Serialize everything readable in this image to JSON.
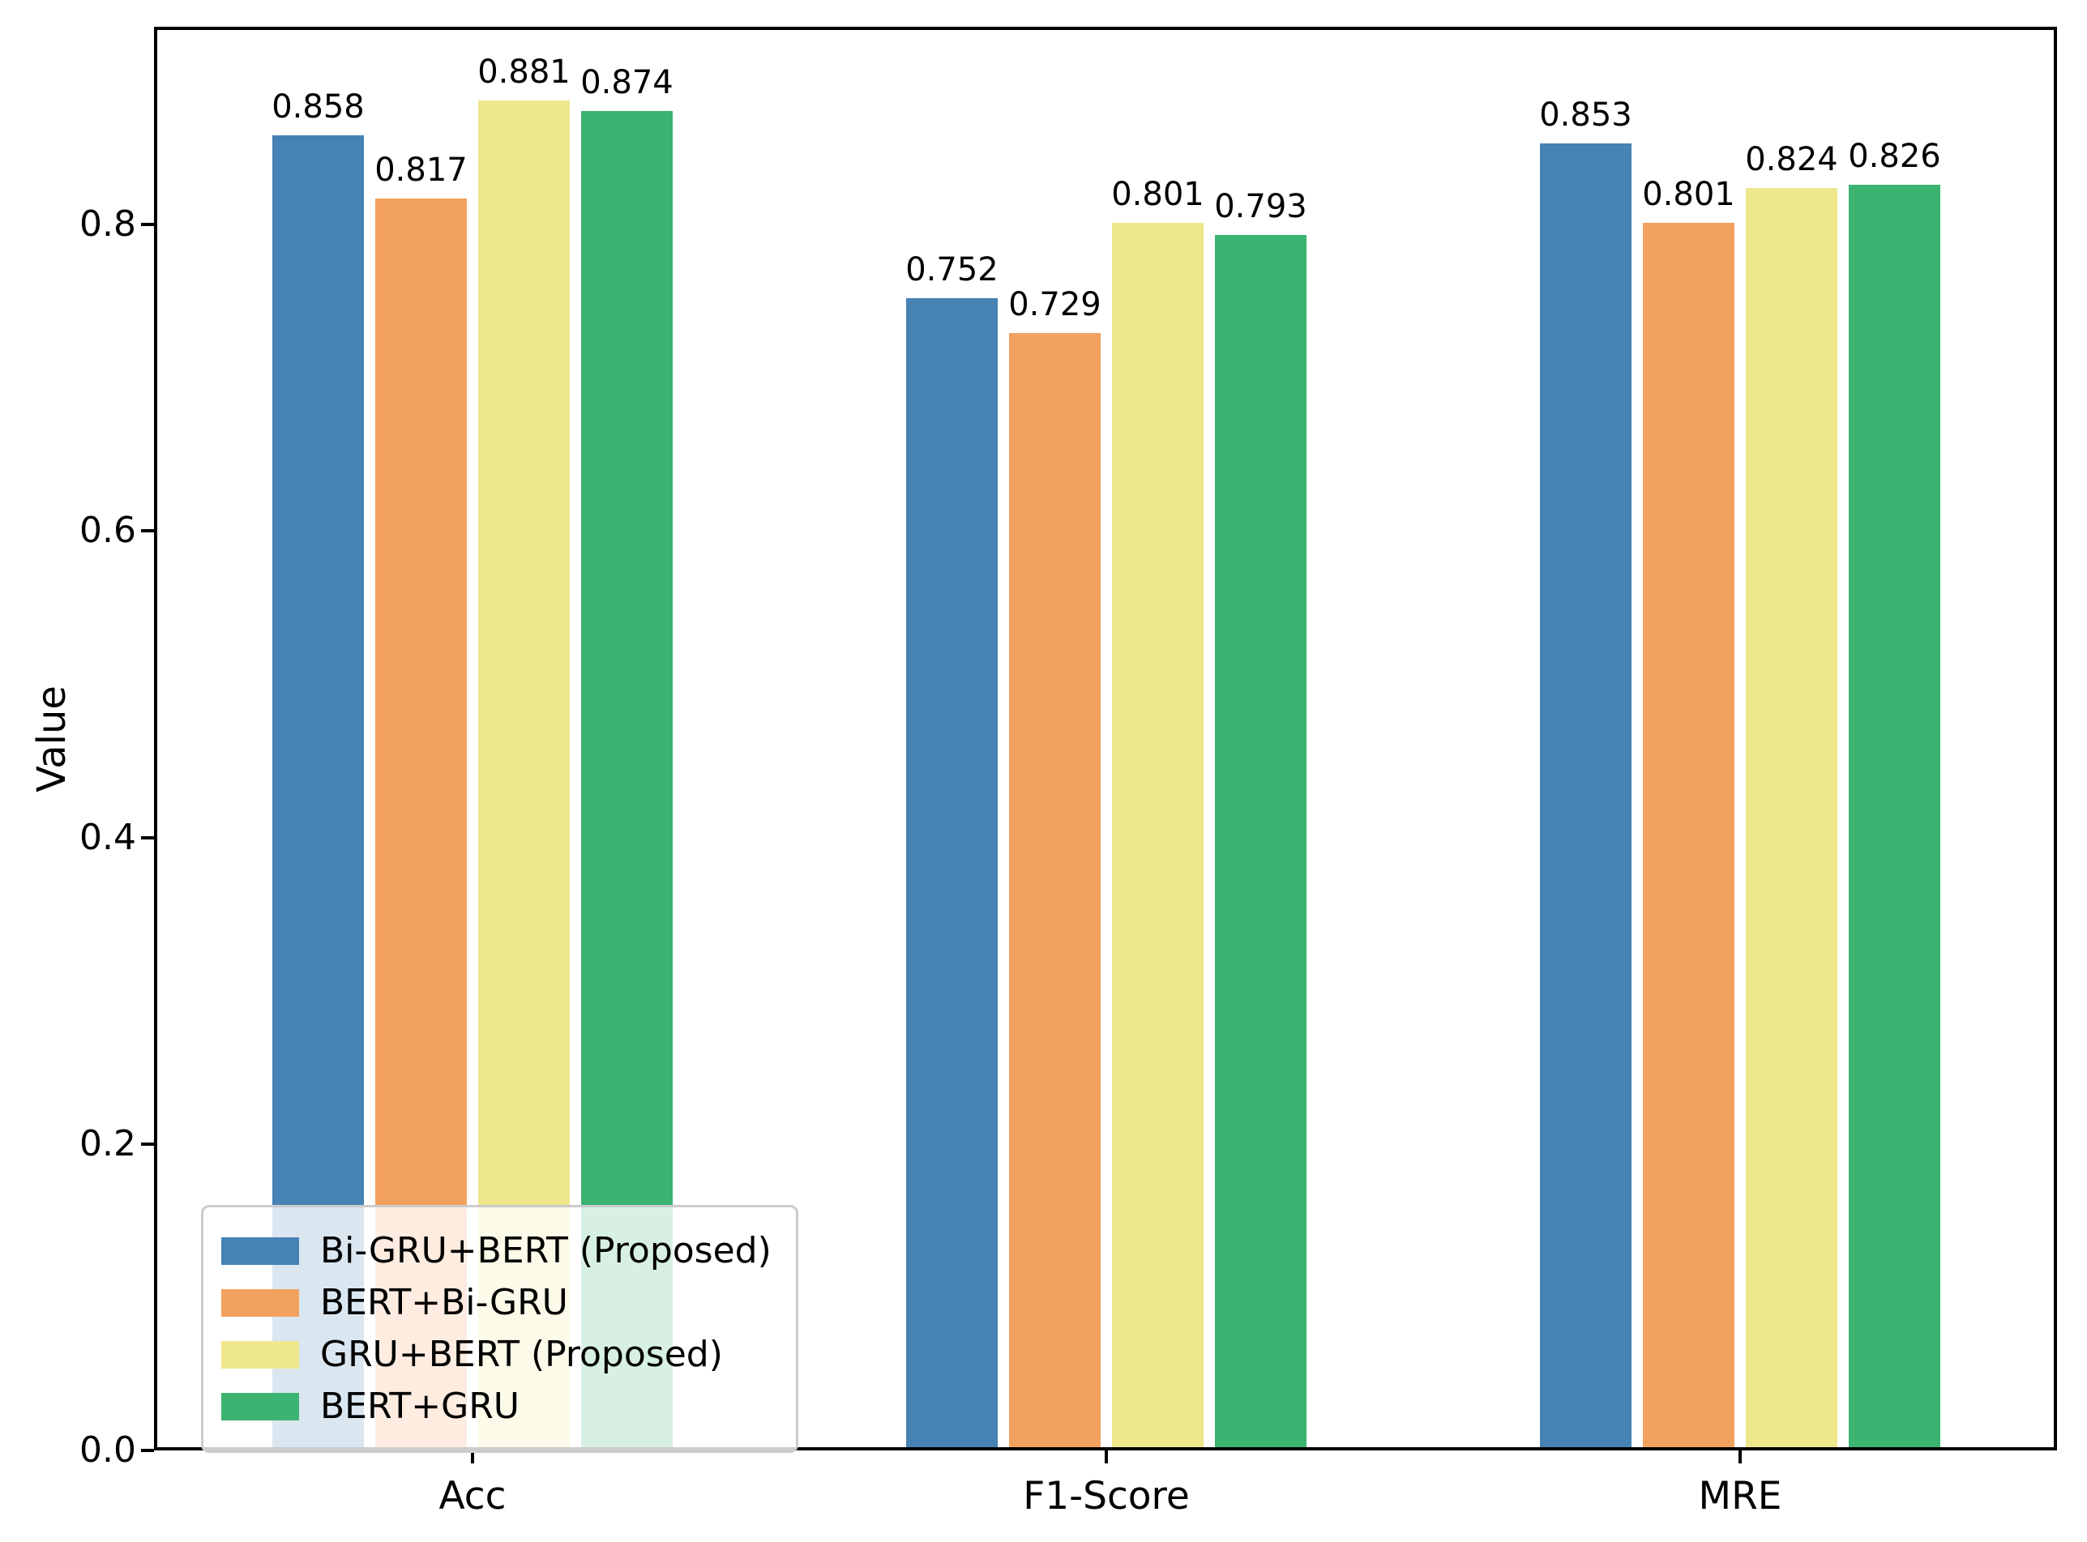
{
  "figure": {
    "background": "#ffffff",
    "spine_color": "#000000",
    "text_color": "#000000",
    "legend_border_color": "#cccccc"
  },
  "chart_data": {
    "type": "bar",
    "title": "",
    "xlabel": "",
    "ylabel": "Value",
    "categories": [
      "Acc",
      "F1-Score",
      "MRE"
    ],
    "series": [
      {
        "name": "Bi-GRU+BERT (Proposed)",
        "color": "#4682B4",
        "values": [
          0.858,
          0.752,
          0.853
        ]
      },
      {
        "name": "BERT+Bi-GRU",
        "color": "#F2A15E",
        "values": [
          0.817,
          0.729,
          0.801
        ]
      },
      {
        "name": "GRU+BERT (Proposed)",
        "color": "#EEE78C",
        "values": [
          0.881,
          0.801,
          0.824
        ]
      },
      {
        "name": "BERT+GRU",
        "color": "#3CB371",
        "values": [
          0.874,
          0.793,
          0.826
        ]
      }
    ],
    "bar_value_labels": {
      "Acc": [
        "0.858",
        "0.817",
        "0.881",
        "0.874"
      ],
      "F1-Score": [
        "0.752",
        "0.729",
        "0.801",
        "0.793"
      ],
      "MRE": [
        "0.853",
        "0.801",
        "0.824",
        "0.826"
      ]
    },
    "ylim": [
      0,
      0.928
    ],
    "yticks": [
      0.0,
      0.2,
      0.4,
      0.6,
      0.8
    ],
    "ytick_labels": [
      "0.0",
      "0.2",
      "0.4",
      "0.6",
      "0.8"
    ],
    "grid": false,
    "legend_position": "lower-left",
    "value_label_decimals": 3
  }
}
